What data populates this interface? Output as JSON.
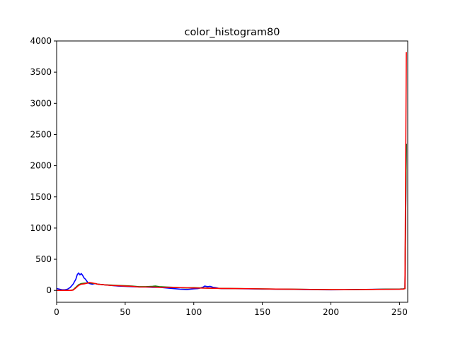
{
  "chart_data": {
    "type": "line",
    "title": "color_histogram80",
    "xlabel": "",
    "ylabel": "",
    "xlim": [
      0,
      256
    ],
    "ylim": [
      -190,
      4000
    ],
    "x_ticks": [
      0,
      50,
      100,
      150,
      200,
      250
    ],
    "y_ticks": [
      0,
      500,
      1000,
      1500,
      2000,
      2500,
      3000,
      3500,
      4000
    ],
    "grid": false,
    "legend": "none",
    "series": [
      {
        "color": "#0000ff",
        "points": [
          [
            0,
            30
          ],
          [
            2,
            20
          ],
          [
            4,
            10
          ],
          [
            6,
            10
          ],
          [
            8,
            20
          ],
          [
            10,
            50
          ],
          [
            12,
            100
          ],
          [
            14,
            180
          ],
          [
            15,
            250
          ],
          [
            16,
            280
          ],
          [
            17,
            250
          ],
          [
            18,
            270
          ],
          [
            19,
            240
          ],
          [
            20,
            200
          ],
          [
            21,
            180
          ],
          [
            22,
            150
          ],
          [
            23,
            120
          ],
          [
            24,
            110
          ],
          [
            26,
            100
          ],
          [
            28,
            110
          ],
          [
            30,
            100
          ],
          [
            35,
            90
          ],
          [
            40,
            80
          ],
          [
            45,
            70
          ],
          [
            50,
            65
          ],
          [
            55,
            60
          ],
          [
            60,
            55
          ],
          [
            65,
            55
          ],
          [
            70,
            50
          ],
          [
            75,
            50
          ],
          [
            80,
            40
          ],
          [
            85,
            30
          ],
          [
            90,
            20
          ],
          [
            95,
            15
          ],
          [
            100,
            25
          ],
          [
            103,
            30
          ],
          [
            105,
            40
          ],
          [
            107,
            55
          ],
          [
            108,
            70
          ],
          [
            110,
            60
          ],
          [
            112,
            65
          ],
          [
            114,
            50
          ],
          [
            116,
            45
          ],
          [
            118,
            35
          ],
          [
            120,
            30
          ],
          [
            130,
            28
          ],
          [
            140,
            25
          ],
          [
            150,
            22
          ],
          [
            160,
            20
          ],
          [
            170,
            18
          ],
          [
            180,
            15
          ],
          [
            190,
            12
          ],
          [
            200,
            10
          ],
          [
            210,
            12
          ],
          [
            220,
            15
          ],
          [
            230,
            18
          ],
          [
            240,
            20
          ],
          [
            250,
            22
          ],
          [
            253,
            25
          ],
          [
            254,
            30
          ],
          [
            255,
            2350
          ]
        ]
      },
      {
        "color": "#008000",
        "points": [
          [
            0,
            0
          ],
          [
            5,
            0
          ],
          [
            10,
            0
          ],
          [
            12,
            10
          ],
          [
            14,
            50
          ],
          [
            16,
            90
          ],
          [
            18,
            110
          ],
          [
            20,
            115
          ],
          [
            22,
            120
          ],
          [
            24,
            125
          ],
          [
            26,
            115
          ],
          [
            28,
            110
          ],
          [
            30,
            100
          ],
          [
            35,
            90
          ],
          [
            40,
            85
          ],
          [
            45,
            80
          ],
          [
            50,
            75
          ],
          [
            55,
            70
          ],
          [
            60,
            60
          ],
          [
            65,
            60
          ],
          [
            70,
            65
          ],
          [
            72,
            70
          ],
          [
            75,
            60
          ],
          [
            80,
            55
          ],
          [
            85,
            50
          ],
          [
            90,
            45
          ],
          [
            95,
            40
          ],
          [
            100,
            45
          ],
          [
            105,
            40
          ],
          [
            110,
            38
          ],
          [
            115,
            35
          ],
          [
            120,
            33
          ],
          [
            130,
            30
          ],
          [
            140,
            28
          ],
          [
            150,
            25
          ],
          [
            160,
            22
          ],
          [
            170,
            20
          ],
          [
            180,
            18
          ],
          [
            190,
            15
          ],
          [
            200,
            12
          ],
          [
            210,
            12
          ],
          [
            220,
            14
          ],
          [
            230,
            16
          ],
          [
            240,
            20
          ],
          [
            250,
            22
          ],
          [
            253,
            25
          ],
          [
            254,
            30
          ],
          [
            255,
            2350
          ]
        ]
      },
      {
        "color": "#ff0000",
        "points": [
          [
            0,
            0
          ],
          [
            5,
            0
          ],
          [
            10,
            0
          ],
          [
            12,
            5
          ],
          [
            14,
            40
          ],
          [
            16,
            80
          ],
          [
            18,
            100
          ],
          [
            20,
            105
          ],
          [
            22,
            115
          ],
          [
            24,
            125
          ],
          [
            26,
            120
          ],
          [
            28,
            110
          ],
          [
            30,
            100
          ],
          [
            35,
            90
          ],
          [
            40,
            80
          ],
          [
            45,
            75
          ],
          [
            50,
            70
          ],
          [
            55,
            65
          ],
          [
            60,
            55
          ],
          [
            65,
            55
          ],
          [
            70,
            55
          ],
          [
            75,
            50
          ],
          [
            80,
            50
          ],
          [
            85,
            48
          ],
          [
            90,
            45
          ],
          [
            95,
            42
          ],
          [
            100,
            40
          ],
          [
            105,
            38
          ],
          [
            110,
            36
          ],
          [
            115,
            34
          ],
          [
            120,
            32
          ],
          [
            130,
            30
          ],
          [
            140,
            28
          ],
          [
            150,
            25
          ],
          [
            160,
            22
          ],
          [
            170,
            20
          ],
          [
            180,
            18
          ],
          [
            190,
            15
          ],
          [
            200,
            13
          ],
          [
            210,
            12
          ],
          [
            220,
            14
          ],
          [
            230,
            16
          ],
          [
            240,
            18
          ],
          [
            250,
            20
          ],
          [
            253,
            22
          ],
          [
            254,
            30
          ],
          [
            255,
            3820
          ]
        ]
      }
    ]
  }
}
